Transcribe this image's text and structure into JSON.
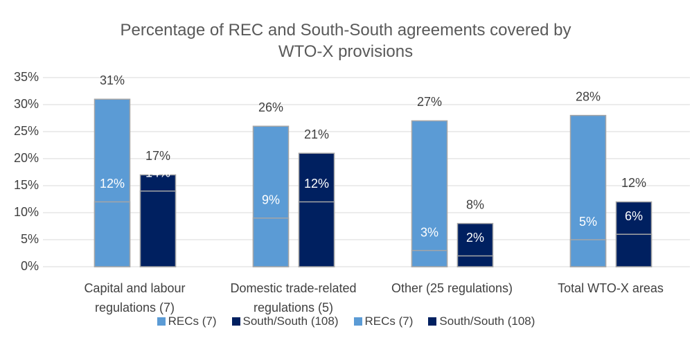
{
  "chart_data": {
    "type": "bar",
    "title": "Percentage of REC and South-South agreements covered by WTO-X provisions",
    "categories": [
      "Capital and labour regulations (7)",
      "Domestic trade-related regulations (5)",
      "Other (25 regulations)",
      "Total WTO-X areas"
    ],
    "series": [
      {
        "name": "RECs (7)",
        "color": "#5b9bd5",
        "values": [
          31,
          26,
          27,
          28
        ],
        "value_labels": [
          "31%",
          "26%",
          "27%",
          "28%"
        ]
      },
      {
        "name": "South/South (108)",
        "color": "#002060",
        "values": [
          17,
          21,
          8,
          12
        ],
        "value_labels": [
          "17%",
          "21%",
          "8%",
          "12%"
        ]
      },
      {
        "name": "RECs (7)",
        "color": "#5b9bd5",
        "values": [
          12,
          9,
          3,
          5
        ],
        "value_labels": [
          "12%",
          "9%",
          "3%",
          "5%"
        ]
      },
      {
        "name": "South/South (108)",
        "color": "#002060",
        "values": [
          14,
          12,
          2,
          6
        ],
        "value_labels": [
          "14%",
          "12%",
          "2%",
          "6%"
        ]
      }
    ],
    "ylim": [
      0,
      35
    ],
    "yticks": [
      {
        "value": 0,
        "label": "0%"
      },
      {
        "value": 5,
        "label": "5%"
      },
      {
        "value": 10,
        "label": "10%"
      },
      {
        "value": 15,
        "label": "15%"
      },
      {
        "value": 20,
        "label": "20%"
      },
      {
        "value": 25,
        "label": "25%"
      },
      {
        "value": 30,
        "label": "30%"
      },
      {
        "value": 35,
        "label": "35%"
      }
    ],
    "grid": true
  }
}
